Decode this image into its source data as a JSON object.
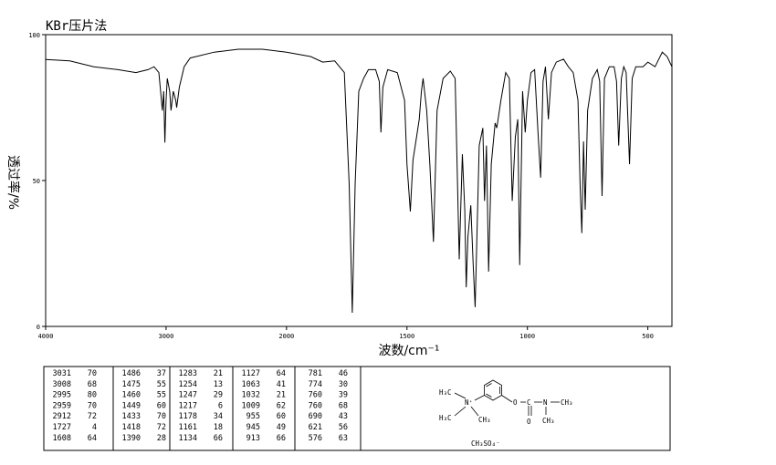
{
  "chart_data": {
    "type": "line",
    "title": "KBr压片法",
    "x_label": "波数/cm⁻¹",
    "y_label": "透过率/%",
    "xlim": [
      4000,
      400
    ],
    "x_scale_break": 2000,
    "xticks": [
      4000,
      3000,
      2000,
      1500,
      1000,
      500
    ],
    "ylim": [
      0,
      100
    ],
    "yticks": [
      0,
      50,
      100
    ],
    "color": "#000000",
    "x": [
      4000,
      3800,
      3600,
      3400,
      3250,
      3150,
      3100,
      3060,
      3031,
      3020,
      3010,
      3000,
      2990,
      2970,
      2959,
      2940,
      2920,
      2912,
      2890,
      2850,
      2800,
      2600,
      2400,
      2200,
      2000,
      1900,
      1850,
      1800,
      1760,
      1740,
      1727,
      1715,
      1700,
      1680,
      1660,
      1630,
      1615,
      1608,
      1600,
      1580,
      1540,
      1510,
      1500,
      1486,
      1475,
      1460,
      1449,
      1440,
      1433,
      1418,
      1405,
      1390,
      1375,
      1350,
      1320,
      1300,
      1283,
      1270,
      1260,
      1254,
      1247,
      1235,
      1225,
      1217,
      1200,
      1185,
      1178,
      1170,
      1161,
      1150,
      1134,
      1127,
      1110,
      1090,
      1075,
      1063,
      1050,
      1040,
      1032,
      1020,
      1009,
      1000,
      985,
      970,
      955,
      945,
      935,
      925,
      913,
      900,
      880,
      850,
      830,
      810,
      790,
      781,
      774,
      767,
      760,
      750,
      730,
      710,
      700,
      690,
      680,
      660,
      640,
      630,
      621,
      610,
      600,
      590,
      576,
      565,
      550,
      520,
      500,
      470,
      440,
      420,
      400
    ],
    "values": [
      91.5,
      91,
      89,
      88,
      87,
      88,
      89,
      87,
      74,
      80.6,
      63,
      77.5,
      85,
      80.6,
      74,
      80.6,
      77.5,
      75,
      82,
      89,
      92,
      94,
      95,
      95,
      94,
      92.5,
      90.6,
      91,
      87,
      49,
      4.7,
      49,
      80.6,
      85,
      88,
      88,
      84,
      66.5,
      82,
      88,
      87,
      77.5,
      55.6,
      39.4,
      57,
      65,
      71,
      80.6,
      85,
      74,
      55.6,
      29,
      74,
      85,
      87.5,
      85,
      23,
      59,
      40,
      13.4,
      30.6,
      41.5,
      21,
      6.6,
      62,
      68,
      43,
      62,
      18.8,
      55.6,
      69.7,
      68,
      77.5,
      87,
      85,
      43,
      65,
      71,
      21,
      80.6,
      66.5,
      77.5,
      87,
      88,
      65,
      51,
      84,
      89,
      71,
      87,
      90.6,
      91.6,
      89,
      87,
      77.5,
      48,
      32,
      63.4,
      40,
      74,
      85,
      88,
      84,
      44.7,
      85,
      89,
      89,
      84,
      62,
      85,
      89,
      87,
      55.6,
      85,
      89,
      89,
      90.6,
      89,
      94,
      92.5,
      89
    ]
  },
  "peak_table": [
    [
      3031,
      70
    ],
    [
      3008,
      68
    ],
    [
      2995,
      80
    ],
    [
      2959,
      70
    ],
    [
      2912,
      72
    ],
    [
      1727,
      4
    ],
    [
      1608,
      64
    ],
    [
      1486,
      37
    ],
    [
      1475,
      55
    ],
    [
      1460,
      55
    ],
    [
      1449,
      60
    ],
    [
      1433,
      70
    ],
    [
      1418,
      72
    ],
    [
      1390,
      28
    ],
    [
      1283,
      21
    ],
    [
      1254,
      13
    ],
    [
      1247,
      29
    ],
    [
      1217,
      6
    ],
    [
      1178,
      34
    ],
    [
      1161,
      18
    ],
    [
      1134,
      66
    ],
    [
      1127,
      64
    ],
    [
      1063,
      41
    ],
    [
      1032,
      21
    ],
    [
      1009,
      62
    ],
    [
      955,
      60
    ],
    [
      945,
      49
    ],
    [
      913,
      66
    ],
    [
      781,
      46
    ],
    [
      774,
      30
    ],
    [
      760,
      39
    ],
    [
      760,
      68
    ],
    [
      690,
      43
    ],
    [
      621,
      56
    ],
    [
      576,
      63
    ]
  ],
  "structure": {
    "h3c_top": "H₃C",
    "h3c_bottom": "H₃C",
    "n_plus": "N⁺",
    "ch3_n": "CH₃",
    "o_ester": "O",
    "c": "C",
    "o_carbonyl": "O",
    "n_amide": "N",
    "ch3_right": "CH₃",
    "ch3_down": "CH₃",
    "counterion": "CH₃SO₄⁻"
  }
}
